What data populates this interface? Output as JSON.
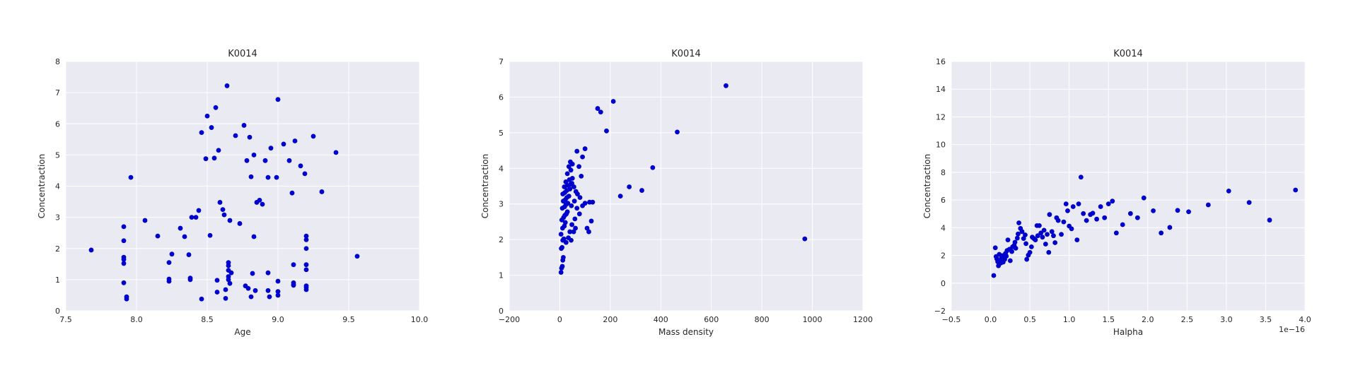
{
  "chart_data": [
    {
      "type": "scatter",
      "title": "K0014",
      "xlabel": "Age",
      "ylabel": "Concentraction",
      "xlim": [
        7.5,
        10.0
      ],
      "ylim": [
        0,
        8
      ],
      "xticks": [
        "7.5",
        "8.0",
        "8.5",
        "9.0",
        "9.5",
        "10.0"
      ],
      "yticks": [
        "0",
        "1",
        "2",
        "3",
        "4",
        "5",
        "6",
        "7",
        "8"
      ],
      "x_offset_text": "",
      "grid": true,
      "marker_color": "#0000cc",
      "points": [
        [
          7.68,
          1.95
        ],
        [
          7.91,
          2.7
        ],
        [
          7.91,
          2.25
        ],
        [
          7.91,
          1.72
        ],
        [
          7.91,
          1.65
        ],
        [
          7.91,
          1.52
        ],
        [
          7.91,
          0.9
        ],
        [
          7.93,
          0.45
        ],
        [
          7.93,
          0.38
        ],
        [
          7.96,
          4.28
        ],
        [
          8.06,
          2.9
        ],
        [
          8.15,
          2.4
        ],
        [
          8.23,
          1.55
        ],
        [
          8.23,
          1.02
        ],
        [
          8.23,
          0.95
        ],
        [
          8.25,
          1.82
        ],
        [
          8.31,
          2.65
        ],
        [
          8.34,
          2.38
        ],
        [
          8.37,
          1.8
        ],
        [
          8.38,
          1.05
        ],
        [
          8.38,
          1.0
        ],
        [
          8.39,
          3.0
        ],
        [
          8.42,
          3.0
        ],
        [
          8.44,
          3.22
        ],
        [
          8.46,
          5.72
        ],
        [
          8.46,
          0.38
        ],
        [
          8.49,
          4.88
        ],
        [
          8.5,
          6.25
        ],
        [
          8.52,
          2.42
        ],
        [
          8.53,
          5.88
        ],
        [
          8.55,
          4.9
        ],
        [
          8.56,
          6.52
        ],
        [
          8.57,
          0.6
        ],
        [
          8.57,
          0.98
        ],
        [
          8.58,
          5.15
        ],
        [
          8.59,
          3.48
        ],
        [
          8.61,
          3.25
        ],
        [
          8.62,
          3.08
        ],
        [
          8.63,
          0.4
        ],
        [
          8.63,
          0.68
        ],
        [
          8.64,
          7.22
        ],
        [
          8.65,
          1.55
        ],
        [
          8.65,
          1.45
        ],
        [
          8.65,
          1.3
        ],
        [
          8.65,
          1.1
        ],
        [
          8.65,
          1.0
        ],
        [
          8.66,
          0.88
        ],
        [
          8.66,
          2.9
        ],
        [
          8.67,
          1.22
        ],
        [
          8.7,
          5.62
        ],
        [
          8.73,
          2.8
        ],
        [
          8.76,
          5.95
        ],
        [
          8.77,
          0.8
        ],
        [
          8.78,
          4.82
        ],
        [
          8.79,
          0.72
        ],
        [
          8.8,
          5.57
        ],
        [
          8.81,
          0.45
        ],
        [
          8.81,
          4.3
        ],
        [
          8.82,
          1.2
        ],
        [
          8.83,
          2.38
        ],
        [
          8.83,
          5.0
        ],
        [
          8.84,
          0.65
        ],
        [
          8.85,
          3.48
        ],
        [
          8.87,
          3.55
        ],
        [
          8.89,
          3.42
        ],
        [
          8.91,
          4.82
        ],
        [
          8.93,
          1.22
        ],
        [
          8.93,
          0.65
        ],
        [
          8.93,
          4.28
        ],
        [
          8.94,
          0.45
        ],
        [
          8.95,
          5.22
        ],
        [
          8.99,
          4.28
        ],
        [
          9.0,
          6.78
        ],
        [
          9.0,
          0.95
        ],
        [
          9.0,
          0.62
        ],
        [
          9.0,
          0.5
        ],
        [
          9.04,
          5.35
        ],
        [
          9.08,
          4.82
        ],
        [
          9.1,
          3.78
        ],
        [
          9.11,
          1.48
        ],
        [
          9.11,
          0.9
        ],
        [
          9.11,
          0.85
        ],
        [
          9.11,
          0.82
        ],
        [
          9.12,
          5.45
        ],
        [
          9.16,
          4.65
        ],
        [
          9.19,
          4.4
        ],
        [
          9.2,
          2.4
        ],
        [
          9.2,
          2.28
        ],
        [
          9.2,
          2.0
        ],
        [
          9.2,
          1.48
        ],
        [
          9.2,
          1.32
        ],
        [
          9.2,
          0.8
        ],
        [
          9.2,
          0.75
        ],
        [
          9.2,
          0.68
        ],
        [
          9.25,
          5.6
        ],
        [
          9.31,
          3.82
        ],
        [
          9.41,
          5.08
        ],
        [
          9.56,
          1.75
        ]
      ]
    },
    {
      "type": "scatter",
      "title": "K0014",
      "xlabel": "Mass density",
      "ylabel": "Concentraction",
      "xlim": [
        -200,
        1200
      ],
      "ylim": [
        0,
        7
      ],
      "xticks": [
        "−200",
        "0",
        "200",
        "400",
        "600",
        "800",
        "1000",
        "1200"
      ],
      "yticks": [
        "0",
        "1",
        "2",
        "3",
        "4",
        "5",
        "6",
        "7"
      ],
      "x_offset_text": "",
      "grid": true,
      "marker_color": "#0000cc",
      "points": [
        [
          5,
          1.08
        ],
        [
          7,
          1.2
        ],
        [
          10,
          1.25
        ],
        [
          12,
          1.42
        ],
        [
          14,
          1.5
        ],
        [
          6,
          1.75
        ],
        [
          9,
          1.78
        ],
        [
          12,
          1.98
        ],
        [
          16,
          2.02
        ],
        [
          5,
          2.15
        ],
        [
          11,
          2.32
        ],
        [
          18,
          2.38
        ],
        [
          22,
          2.48
        ],
        [
          8,
          2.55
        ],
        [
          15,
          2.62
        ],
        [
          20,
          2.68
        ],
        [
          26,
          2.72
        ],
        [
          30,
          2.78
        ],
        [
          10,
          2.88
        ],
        [
          19,
          2.92
        ],
        [
          24,
          2.98
        ],
        [
          32,
          3.02
        ],
        [
          14,
          3.08
        ],
        [
          22,
          3.12
        ],
        [
          28,
          3.18
        ],
        [
          36,
          3.22
        ],
        [
          12,
          3.28
        ],
        [
          20,
          3.32
        ],
        [
          28,
          3.38
        ],
        [
          40,
          3.42
        ],
        [
          18,
          3.48
        ],
        [
          30,
          3.52
        ],
        [
          42,
          3.55
        ],
        [
          48,
          3.58
        ],
        [
          24,
          3.62
        ],
        [
          38,
          3.68
        ],
        [
          50,
          3.72
        ],
        [
          30,
          3.85
        ],
        [
          44,
          3.95
        ],
        [
          36,
          4.05
        ],
        [
          50,
          4.12
        ],
        [
          42,
          4.18
        ],
        [
          56,
          3.48
        ],
        [
          64,
          3.35
        ],
        [
          70,
          3.28
        ],
        [
          80,
          3.18
        ],
        [
          58,
          3.08
        ],
        [
          46,
          2.95
        ],
        [
          68,
          2.88
        ],
        [
          90,
          2.95
        ],
        [
          100,
          3.02
        ],
        [
          118,
          3.05
        ],
        [
          130,
          3.05
        ],
        [
          78,
          2.72
        ],
        [
          60,
          2.58
        ],
        [
          48,
          2.42
        ],
        [
          62,
          2.32
        ],
        [
          40,
          2.22
        ],
        [
          108,
          2.32
        ],
        [
          115,
          2.22
        ],
        [
          125,
          2.52
        ],
        [
          100,
          4.55
        ],
        [
          90,
          4.32
        ],
        [
          76,
          4.05
        ],
        [
          68,
          4.48
        ],
        [
          85,
          3.78
        ],
        [
          55,
          2.22
        ],
        [
          34,
          2.05
        ],
        [
          25,
          1.92
        ],
        [
          45,
          1.98
        ],
        [
          150,
          5.68
        ],
        [
          162,
          5.58
        ],
        [
          185,
          5.05
        ],
        [
          212,
          5.88
        ],
        [
          240,
          3.22
        ],
        [
          275,
          3.48
        ],
        [
          325,
          3.38
        ],
        [
          368,
          4.02
        ],
        [
          465,
          5.02
        ],
        [
          658,
          6.32
        ],
        [
          970,
          2.02
        ]
      ]
    },
    {
      "type": "scatter",
      "title": "K0014",
      "xlabel": "Halpha",
      "ylabel": "Concentraction",
      "xlim": [
        -0.5,
        4.0
      ],
      "ylim": [
        -2,
        16
      ],
      "xticks": [
        "−0.5",
        "0.0",
        "0.5",
        "1.0",
        "1.5",
        "2.0",
        "2.5",
        "3.0",
        "3.5",
        "4.0"
      ],
      "yticks": [
        "−2",
        "0",
        "2",
        "4",
        "6",
        "8",
        "10",
        "12",
        "14",
        "16"
      ],
      "x_offset_text": "1e−16",
      "grid": true,
      "marker_color": "#0000cc",
      "points": [
        [
          0.04,
          0.55
        ],
        [
          0.06,
          2.55
        ],
        [
          0.07,
          1.92
        ],
        [
          0.08,
          1.75
        ],
        [
          0.09,
          1.55
        ],
        [
          0.1,
          1.25
        ],
        [
          0.11,
          2.08
        ],
        [
          0.12,
          1.62
        ],
        [
          0.13,
          1.45
        ],
        [
          0.14,
          1.85
        ],
        [
          0.15,
          1.98
        ],
        [
          0.16,
          1.52
        ],
        [
          0.18,
          1.72
        ],
        [
          0.19,
          2.15
        ],
        [
          0.2,
          1.95
        ],
        [
          0.21,
          2.35
        ],
        [
          0.22,
          3.12
        ],
        [
          0.24,
          2.45
        ],
        [
          0.25,
          1.62
        ],
        [
          0.27,
          2.28
        ],
        [
          0.28,
          2.62
        ],
        [
          0.3,
          2.72
        ],
        [
          0.31,
          2.95
        ],
        [
          0.32,
          2.52
        ],
        [
          0.34,
          3.25
        ],
        [
          0.35,
          3.55
        ],
        [
          0.36,
          4.35
        ],
        [
          0.38,
          3.95
        ],
        [
          0.4,
          3.72
        ],
        [
          0.42,
          3.22
        ],
        [
          0.44,
          3.48
        ],
        [
          0.45,
          2.85
        ],
        [
          0.46,
          1.72
        ],
        [
          0.48,
          2.02
        ],
        [
          0.5,
          2.22
        ],
        [
          0.52,
          2.62
        ],
        [
          0.53,
          3.32
        ],
        [
          0.55,
          3.22
        ],
        [
          0.57,
          3.12
        ],
        [
          0.59,
          4.15
        ],
        [
          0.6,
          3.42
        ],
        [
          0.62,
          4.15
        ],
        [
          0.64,
          3.62
        ],
        [
          0.66,
          3.32
        ],
        [
          0.68,
          3.82
        ],
        [
          0.7,
          2.82
        ],
        [
          0.72,
          3.52
        ],
        [
          0.74,
          2.22
        ],
        [
          0.75,
          4.95
        ],
        [
          0.78,
          3.72
        ],
        [
          0.8,
          3.42
        ],
        [
          0.82,
          2.92
        ],
        [
          0.84,
          4.72
        ],
        [
          0.86,
          4.52
        ],
        [
          0.9,
          3.52
        ],
        [
          0.93,
          4.42
        ],
        [
          0.96,
          5.72
        ],
        [
          0.98,
          5.22
        ],
        [
          1.0,
          4.12
        ],
        [
          1.03,
          3.92
        ],
        [
          1.05,
          5.52
        ],
        [
          1.1,
          3.12
        ],
        [
          1.12,
          5.72
        ],
        [
          1.15,
          7.65
        ],
        [
          1.18,
          5.02
        ],
        [
          1.22,
          4.52
        ],
        [
          1.27,
          4.95
        ],
        [
          1.3,
          5.05
        ],
        [
          1.35,
          4.62
        ],
        [
          1.4,
          5.52
        ],
        [
          1.45,
          4.72
        ],
        [
          1.5,
          5.72
        ],
        [
          1.55,
          5.92
        ],
        [
          1.6,
          3.62
        ],
        [
          1.68,
          4.22
        ],
        [
          1.78,
          5.02
        ],
        [
          1.87,
          4.72
        ],
        [
          1.95,
          6.15
        ],
        [
          2.07,
          5.22
        ],
        [
          2.17,
          3.62
        ],
        [
          2.28,
          4.02
        ],
        [
          2.38,
          5.25
        ],
        [
          2.52,
          5.15
        ],
        [
          2.77,
          5.65
        ],
        [
          3.03,
          6.65
        ],
        [
          3.29,
          5.82
        ],
        [
          3.55,
          4.55
        ],
        [
          3.88,
          6.72
        ]
      ]
    }
  ]
}
